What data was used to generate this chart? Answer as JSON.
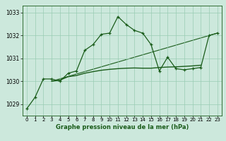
{
  "line_main_x": [
    0,
    1,
    2,
    3,
    4,
    5,
    6,
    7,
    8,
    9,
    10,
    11,
    12,
    13,
    14,
    15,
    16,
    17,
    18,
    19,
    20,
    21,
    22,
    23
  ],
  "line_main_y": [
    1028.8,
    1029.3,
    1030.1,
    1030.1,
    1030.0,
    1030.35,
    1030.45,
    1031.35,
    1031.6,
    1032.05,
    1032.1,
    1032.82,
    1032.48,
    1032.22,
    1032.1,
    1031.6,
    1030.45,
    1031.05,
    1030.55,
    1030.5,
    1030.55,
    1030.6,
    1032.0,
    1032.1
  ],
  "line_flat_x": [
    3,
    4,
    5,
    6,
    7,
    8,
    9,
    10,
    11,
    12,
    13,
    14,
    15,
    16,
    17,
    18,
    19,
    20,
    21
  ],
  "line_flat_y": [
    1030.0,
    1030.05,
    1030.2,
    1030.25,
    1030.35,
    1030.42,
    1030.48,
    1030.52,
    1030.55,
    1030.57,
    1030.58,
    1030.57,
    1030.57,
    1030.6,
    1030.62,
    1030.63,
    1030.65,
    1030.67,
    1030.7
  ],
  "line_trend_x": [
    3,
    23
  ],
  "line_trend_y": [
    1030.0,
    1032.1
  ],
  "line_color_dark": "#1a5c1a",
  "line_color_mid": "#2d7a2d",
  "bg_color": "#cce8dc",
  "grid_color": "#99ccb3",
  "xlabel": "Graphe pression niveau de la mer (hPa)",
  "xlim": [
    -0.5,
    23.5
  ],
  "ylim": [
    1028.5,
    1033.3
  ],
  "yticks": [
    1029,
    1030,
    1031,
    1032,
    1033
  ],
  "xticks": [
    0,
    1,
    2,
    3,
    4,
    5,
    6,
    7,
    8,
    9,
    10,
    11,
    12,
    13,
    14,
    15,
    16,
    17,
    18,
    19,
    20,
    21,
    22,
    23
  ]
}
